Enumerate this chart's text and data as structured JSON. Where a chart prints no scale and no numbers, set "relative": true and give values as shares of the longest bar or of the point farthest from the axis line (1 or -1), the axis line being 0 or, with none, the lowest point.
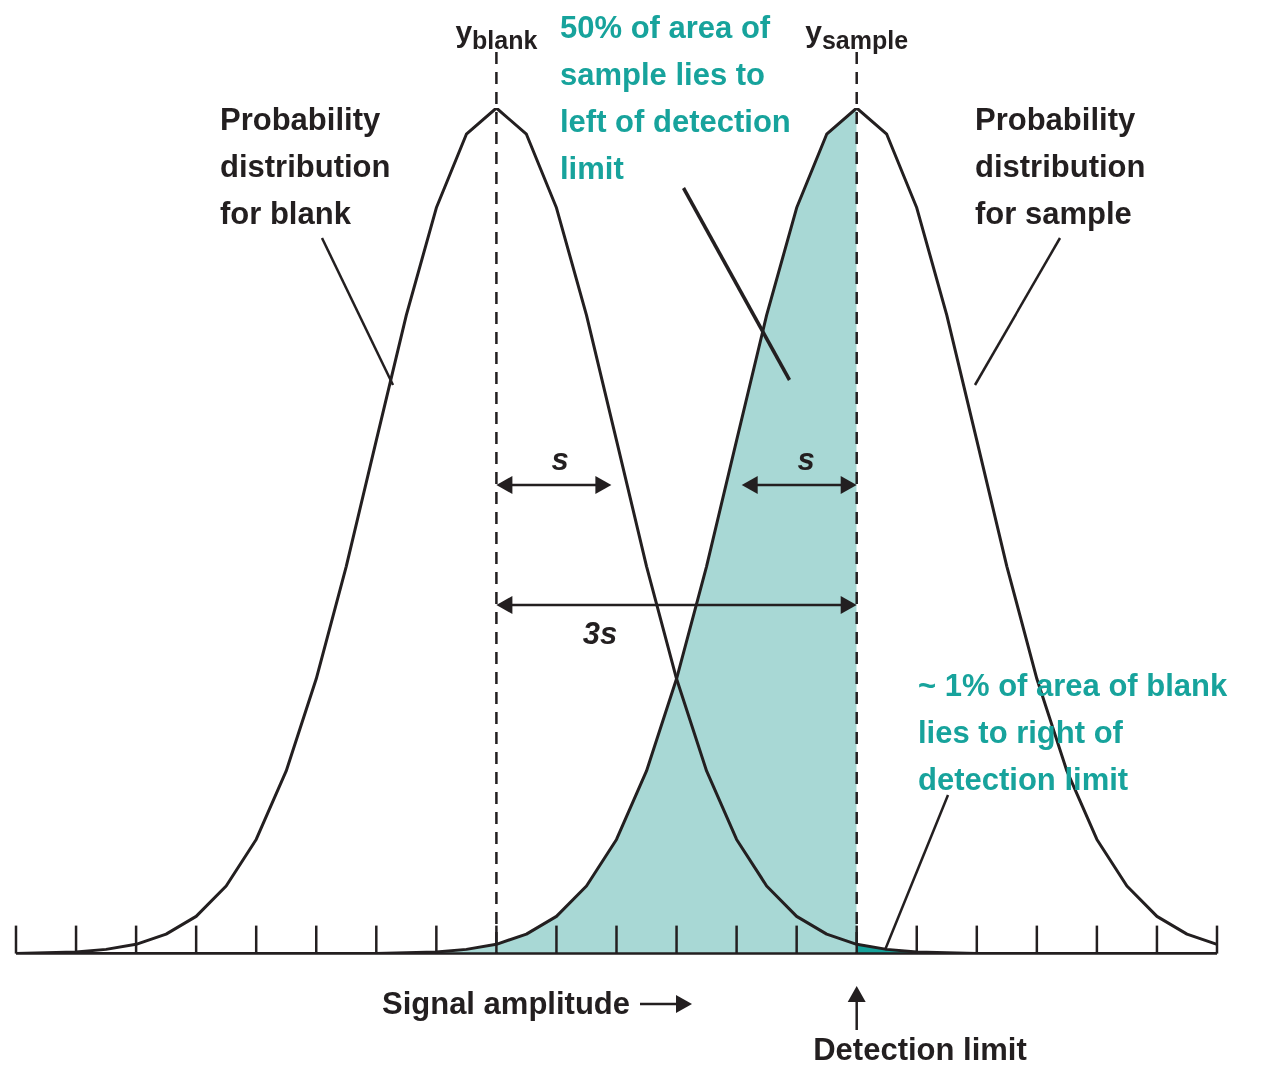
{
  "chart_data": {
    "type": "line",
    "relative": true,
    "xlabel": "Signal amplitude",
    "grid": false,
    "legend": false,
    "marker": "none",
    "categories": [
      null,
      null,
      null,
      null,
      null,
      null,
      null,
      null,
      null,
      null,
      null,
      null,
      null,
      null,
      null,
      null,
      null,
      null,
      null,
      null,
      null,
      null,
      null,
      null,
      null,
      null,
      null,
      null,
      null,
      null,
      null,
      null,
      null,
      null,
      null,
      null,
      null,
      null,
      null,
      null,
      null
    ],
    "series": [
      {
        "type": "area",
        "color": "#a8d8d5",
        "values": [
          0,
          0,
          0,
          0,
          0,
          0,
          0,
          0,
          0,
          0,
          0,
          0,
          0,
          0.001,
          0.002,
          0.005,
          0.011,
          0.023,
          0.044,
          0.08,
          0.135,
          0.216,
          0.325,
          0.458,
          0.607,
          0.755,
          0.882,
          0.969,
          1,
          null,
          null,
          null,
          null,
          null,
          null,
          null,
          null,
          null,
          null,
          null,
          null
        ]
      },
      {
        "type": "area",
        "color": "#17a39c",
        "values": [
          null,
          null,
          null,
          null,
          null,
          null,
          null,
          null,
          null,
          null,
          null,
          null,
          null,
          null,
          null,
          null,
          null,
          null,
          null,
          null,
          null,
          null,
          null,
          null,
          null,
          null,
          null,
          null,
          0.011,
          0.005,
          0.002,
          0.001,
          0,
          null,
          null,
          null,
          null,
          null,
          null,
          null,
          null
        ]
      },
      {
        "type": "line",
        "color": "#231f20",
        "values": [
          0,
          0.001,
          0.002,
          0.005,
          0.011,
          0.023,
          0.044,
          0.08,
          0.135,
          0.216,
          0.325,
          0.458,
          0.607,
          0.755,
          0.882,
          0.969,
          1,
          0.969,
          0.882,
          0.755,
          0.607,
          0.458,
          0.325,
          0.216,
          0.135,
          0.08,
          0.044,
          0.023,
          0.011,
          0.005,
          0.002,
          0.001,
          0,
          0,
          0,
          0,
          0,
          0,
          0,
          0,
          0
        ]
      },
      {
        "type": "line",
        "color": "#231f20",
        "values": [
          0,
          0,
          0,
          0,
          0,
          0,
          0,
          0,
          0,
          0,
          0,
          0,
          0,
          0.001,
          0.002,
          0.005,
          0.011,
          0.023,
          0.044,
          0.08,
          0.135,
          0.216,
          0.325,
          0.458,
          0.607,
          0.755,
          0.882,
          0.969,
          1,
          0.969,
          0.882,
          0.755,
          0.607,
          0.458,
          0.325,
          0.216,
          0.135,
          0.08,
          0.044,
          0.023,
          0.011
        ]
      }
    ],
    "annotations": [
      "Probability distribution for blank",
      "50% of area of sample lies to left of detection limit",
      "Probability distribution for sample",
      "s",
      "s",
      "3s",
      "~ 1% of area of blank lies to right of detection limit",
      "Detection limit",
      "y$_{blank}$",
      "y$_{sample}$"
    ]
  }
}
